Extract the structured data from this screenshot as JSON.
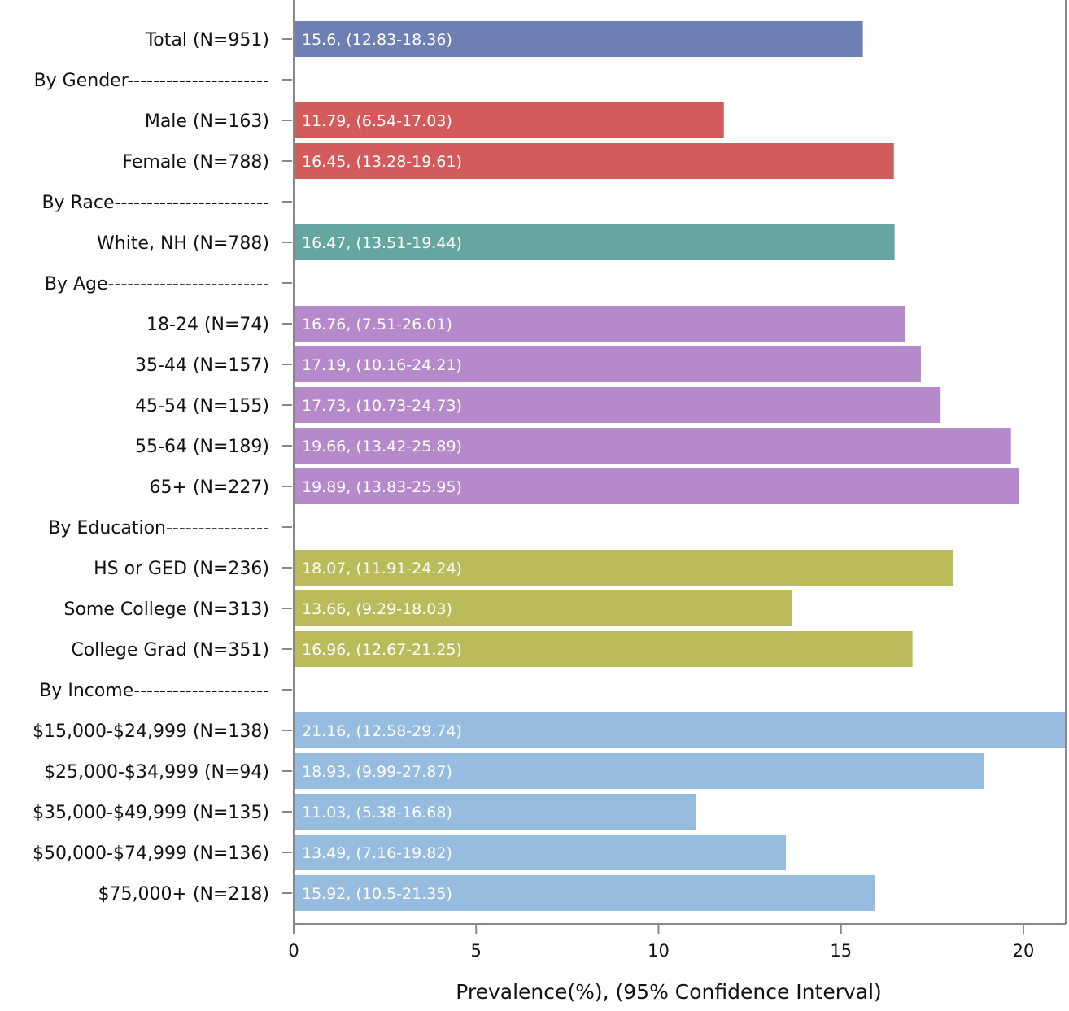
{
  "chart_data": {
    "type": "bar",
    "orientation": "horizontal",
    "xlabel": "Prevalence(%), (95% Confidence Interval)",
    "xlim": [
      0,
      21.16
    ],
    "xticks": [
      0,
      5,
      10,
      15,
      20
    ],
    "grid": false,
    "legend": "none",
    "colors": {
      "total": "#6E7FB4",
      "gender": "#D45B5B",
      "race": "#66A6A0",
      "age": "#B689CB",
      "education": "#BBBB5B",
      "income": "#96BCE0"
    },
    "rows": [
      {
        "label": "Total (N=951)",
        "value": 15.6,
        "bar_label": "15.6, (12.83-18.36)",
        "group": "total"
      },
      {
        "label": "By Gender----------------------",
        "value": null,
        "bar_label": "",
        "group": "header"
      },
      {
        "label": "Male (N=163)",
        "value": 11.79,
        "bar_label": "11.79, (6.54-17.03)",
        "group": "gender"
      },
      {
        "label": "Female (N=788)",
        "value": 16.45,
        "bar_label": "16.45, (13.28-19.61)",
        "group": "gender"
      },
      {
        "label": "By Race------------------------",
        "value": null,
        "bar_label": "",
        "group": "header"
      },
      {
        "label": "White, NH (N=788)",
        "value": 16.47,
        "bar_label": "16.47, (13.51-19.44)",
        "group": "race"
      },
      {
        "label": "By Age-------------------------",
        "value": null,
        "bar_label": "",
        "group": "header"
      },
      {
        "label": "18-24 (N=74)",
        "value": 16.76,
        "bar_label": "16.76, (7.51-26.01)",
        "group": "age"
      },
      {
        "label": "35-44 (N=157)",
        "value": 17.19,
        "bar_label": "17.19, (10.16-24.21)",
        "group": "age"
      },
      {
        "label": "45-54 (N=155)",
        "value": 17.73,
        "bar_label": "17.73, (10.73-24.73)",
        "group": "age"
      },
      {
        "label": "55-64 (N=189)",
        "value": 19.66,
        "bar_label": "19.66, (13.42-25.89)",
        "group": "age"
      },
      {
        "label": "65+ (N=227)",
        "value": 19.89,
        "bar_label": "19.89, (13.83-25.95)",
        "group": "age"
      },
      {
        "label": "By Education----------------",
        "value": null,
        "bar_label": "",
        "group": "header"
      },
      {
        "label": "HS or GED (N=236)",
        "value": 18.07,
        "bar_label": "18.07, (11.91-24.24)",
        "group": "education"
      },
      {
        "label": "Some College (N=313)",
        "value": 13.66,
        "bar_label": "13.66, (9.29-18.03)",
        "group": "education"
      },
      {
        "label": "College Grad (N=351)",
        "value": 16.96,
        "bar_label": "16.96, (12.67-21.25)",
        "group": "education"
      },
      {
        "label": "By Income---------------------",
        "value": null,
        "bar_label": "",
        "group": "header"
      },
      {
        "label": "$15,000-$24,999 (N=138)",
        "value": 21.16,
        "bar_label": "21.16, (12.58-29.74)",
        "group": "income"
      },
      {
        "label": "$25,000-$34,999 (N=94)",
        "value": 18.93,
        "bar_label": "18.93, (9.99-27.87)",
        "group": "income"
      },
      {
        "label": "$35,000-$49,999 (N=135)",
        "value": 11.03,
        "bar_label": "11.03, (5.38-16.68)",
        "group": "income"
      },
      {
        "label": "$50,000-$74,999 (N=136)",
        "value": 13.49,
        "bar_label": "13.49, (7.16-19.82)",
        "group": "income"
      },
      {
        "label": "$75,000+ (N=218)",
        "value": 15.92,
        "bar_label": "15.92, (10.5-21.35)",
        "group": "income"
      }
    ]
  }
}
